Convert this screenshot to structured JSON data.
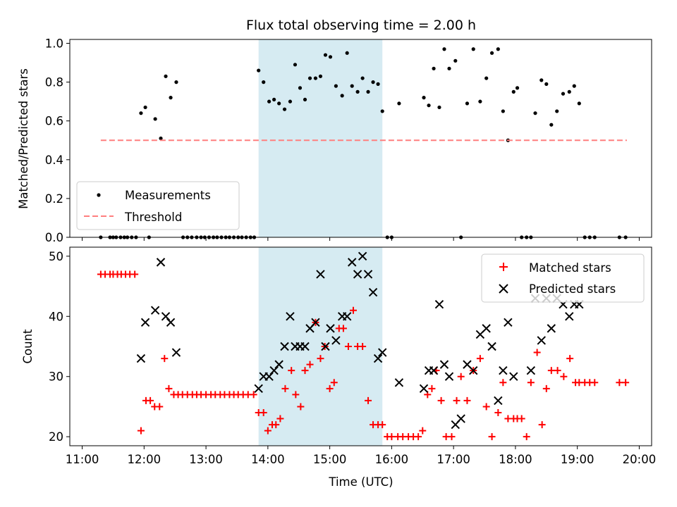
{
  "chart_data": {
    "type": "scatter",
    "title": "Flux total observing time = 2.00 h",
    "xlabel": "Time (UTC)",
    "xlim": [
      10.8,
      20.2
    ],
    "x_ticks": [
      11,
      12,
      13,
      14,
      15,
      16,
      17,
      18,
      19,
      20
    ],
    "x_tick_labels": [
      "11:00",
      "12:00",
      "13:00",
      "14:00",
      "15:00",
      "16:00",
      "17:00",
      "18:00",
      "19:00",
      "20:00"
    ],
    "highlight_span": {
      "x_start": 13.85,
      "x_end": 15.85,
      "color": "#add8e6"
    },
    "panels": [
      {
        "id": "ratio",
        "ylabel": "Matched/Predicted stars",
        "ylim": [
          0,
          1.02
        ],
        "y_ticks": [
          0.0,
          0.2,
          0.4,
          0.6,
          0.8,
          1.0
        ],
        "y_tick_labels": [
          "0.0",
          "0.2",
          "0.4",
          "0.6",
          "0.8",
          "1.0"
        ],
        "legend_position": "lower-left",
        "series": [
          {
            "name": "Measurements",
            "marker": "dot",
            "color": "#000000",
            "x": [
              11.3,
              11.45,
              11.5,
              11.55,
              11.62,
              11.68,
              11.73,
              11.8,
              11.87,
              11.95,
              12.02,
              12.08,
              12.18,
              12.27,
              12.35,
              12.43,
              12.52,
              12.63,
              12.7,
              12.77,
              12.85,
              12.92,
              12.98,
              13.05,
              13.12,
              13.18,
              13.25,
              13.32,
              13.38,
              13.45,
              13.52,
              13.58,
              13.65,
              13.72,
              13.78,
              13.85,
              13.93,
              14.02,
              14.1,
              14.18,
              14.27,
              14.36,
              14.44,
              14.52,
              14.6,
              14.68,
              14.77,
              14.85,
              14.93,
              15.01,
              15.1,
              15.2,
              15.28,
              15.36,
              15.45,
              15.53,
              15.62,
              15.7,
              15.78,
              15.85,
              15.93,
              16.0,
              16.12,
              16.52,
              16.6,
              16.68,
              16.77,
              16.85,
              16.93,
              17.03,
              17.12,
              17.22,
              17.32,
              17.43,
              17.53,
              17.62,
              17.72,
              17.8,
              17.88,
              17.97,
              18.03,
              18.1,
              18.18,
              18.25,
              18.32,
              18.42,
              18.5,
              18.58,
              18.67,
              18.77,
              18.87,
              18.95,
              19.03,
              19.12,
              19.2,
              19.28,
              19.68,
              19.78
            ],
            "y": [
              0,
              0,
              0,
              0,
              0,
              0,
              0,
              0,
              0,
              0.64,
              0.67,
              0,
              0.61,
              0.51,
              0.83,
              0.72,
              0.8,
              0,
              0,
              0,
              0,
              0,
              0,
              0,
              0,
              0,
              0,
              0,
              0,
              0,
              0,
              0,
              0,
              0,
              0,
              0.86,
              0.8,
              0.7,
              0.71,
              0.69,
              0.66,
              0.7,
              0.89,
              0.77,
              0.71,
              0.82,
              0.82,
              0.83,
              0.94,
              0.93,
              0.78,
              0.73,
              0.95,
              0.78,
              0.75,
              0.82,
              0.75,
              0.8,
              0.79,
              0.65,
              0,
              0,
              0.69,
              0.72,
              0.68,
              0.87,
              0.67,
              0.97,
              0.87,
              0.91,
              0,
              0.69,
              0.97,
              0.7,
              0.82,
              0.95,
              0.97,
              0.65,
              0.5,
              0.75,
              0.77,
              0,
              0,
              0,
              0.64,
              0.81,
              0.79,
              0.58,
              0.65,
              0.74,
              0.75,
              0.78,
              0.69,
              0,
              0,
              0,
              0,
              0
            ]
          },
          {
            "name": "Threshold",
            "marker": "dashed-line",
            "color": "#ff7f7f",
            "x": [
              11.3,
              19.8
            ],
            "y": [
              0.5,
              0.5
            ]
          }
        ]
      },
      {
        "id": "counts",
        "ylabel": "Count",
        "ylim": [
          18.5,
          51.5
        ],
        "y_ticks": [
          20,
          30,
          40,
          50
        ],
        "y_tick_labels": [
          "20",
          "30",
          "40",
          "50"
        ],
        "legend_position": "upper-right",
        "series": [
          {
            "name": "Matched stars",
            "marker": "plus",
            "color": "#ff0000",
            "x": [
              11.3,
              11.37,
              11.45,
              11.5,
              11.57,
              11.63,
              11.7,
              11.77,
              11.85,
              11.95,
              12.03,
              12.1,
              12.17,
              12.25,
              12.33,
              12.4,
              12.48,
              12.55,
              12.62,
              12.7,
              12.78,
              12.85,
              12.92,
              13.0,
              13.08,
              13.15,
              13.23,
              13.3,
              13.38,
              13.45,
              13.52,
              13.6,
              13.68,
              13.77,
              13.85,
              13.93,
              14.0,
              14.07,
              14.13,
              14.2,
              14.28,
              14.38,
              14.45,
              14.53,
              14.6,
              14.68,
              14.77,
              14.85,
              14.92,
              15.0,
              15.07,
              15.15,
              15.22,
              15.3,
              15.38,
              15.45,
              15.53,
              15.62,
              15.7,
              15.78,
              15.85,
              15.93,
              16.0,
              16.1,
              16.18,
              16.27,
              16.35,
              16.43,
              16.5,
              16.58,
              16.65,
              16.72,
              16.8,
              16.88,
              16.97,
              17.05,
              17.12,
              17.22,
              17.32,
              17.43,
              17.53,
              17.62,
              17.72,
              17.8,
              17.88,
              17.97,
              18.03,
              18.1,
              18.18,
              18.25,
              18.35,
              18.43,
              18.5,
              18.58,
              18.68,
              18.78,
              18.88,
              18.97,
              19.03,
              19.12,
              19.2,
              19.28,
              19.68,
              19.78
            ],
            "y": [
              47,
              47,
              47,
              47,
              47,
              47,
              47,
              47,
              47,
              21,
              26,
              26,
              25,
              25,
              33,
              28,
              27,
              27,
              27,
              27,
              27,
              27,
              27,
              27,
              27,
              27,
              27,
              27,
              27,
              27,
              27,
              27,
              27,
              27,
              24,
              24,
              21,
              22,
              22,
              23,
              28,
              31,
              27,
              25,
              31,
              32,
              39,
              33,
              35,
              28,
              29,
              38,
              38,
              35,
              41,
              35,
              35,
              26,
              22,
              22,
              22,
              20,
              20,
              20,
              20,
              20,
              20,
              20,
              21,
              27,
              28,
              31,
              26,
              20,
              20,
              26,
              30,
              26,
              31,
              33,
              25,
              20,
              24,
              29,
              23,
              23,
              23,
              23,
              20,
              29,
              34,
              22,
              28,
              31,
              31,
              30,
              33,
              29,
              29,
              29,
              29,
              29,
              29,
              29
            ]
          },
          {
            "name": "Predicted stars",
            "marker": "x",
            "color": "#000000",
            "x": [
              11.95,
              12.02,
              12.18,
              12.27,
              12.35,
              12.43,
              12.52,
              13.85,
              13.93,
              14.02,
              14.1,
              14.18,
              14.27,
              14.36,
              14.44,
              14.52,
              14.6,
              14.68,
              14.77,
              14.85,
              14.93,
              15.01,
              15.1,
              15.2,
              15.28,
              15.36,
              15.45,
              15.53,
              15.62,
              15.7,
              15.78,
              15.85,
              16.12,
              16.52,
              16.6,
              16.68,
              16.77,
              16.85,
              16.93,
              17.03,
              17.12,
              17.22,
              17.32,
              17.43,
              17.53,
              17.62,
              17.72,
              17.8,
              17.88,
              17.97,
              18.25,
              18.32,
              18.42,
              18.5,
              18.58,
              18.67,
              18.77,
              18.87,
              18.95,
              19.03
            ],
            "y": [
              33,
              39,
              41,
              49,
              40,
              39,
              34,
              28,
              30,
              30,
              31,
              32,
              35,
              40,
              35,
              35,
              35,
              38,
              39,
              47,
              35,
              38,
              36,
              40,
              40,
              49,
              47,
              50,
              47,
              44,
              33,
              34,
              29,
              28,
              31,
              31,
              42,
              32,
              30,
              22,
              23,
              32,
              31,
              37,
              38,
              35,
              26,
              31,
              39,
              30,
              31,
              43,
              36,
              43,
              38,
              43,
              42,
              40,
              42,
              42
            ]
          }
        ]
      }
    ]
  }
}
